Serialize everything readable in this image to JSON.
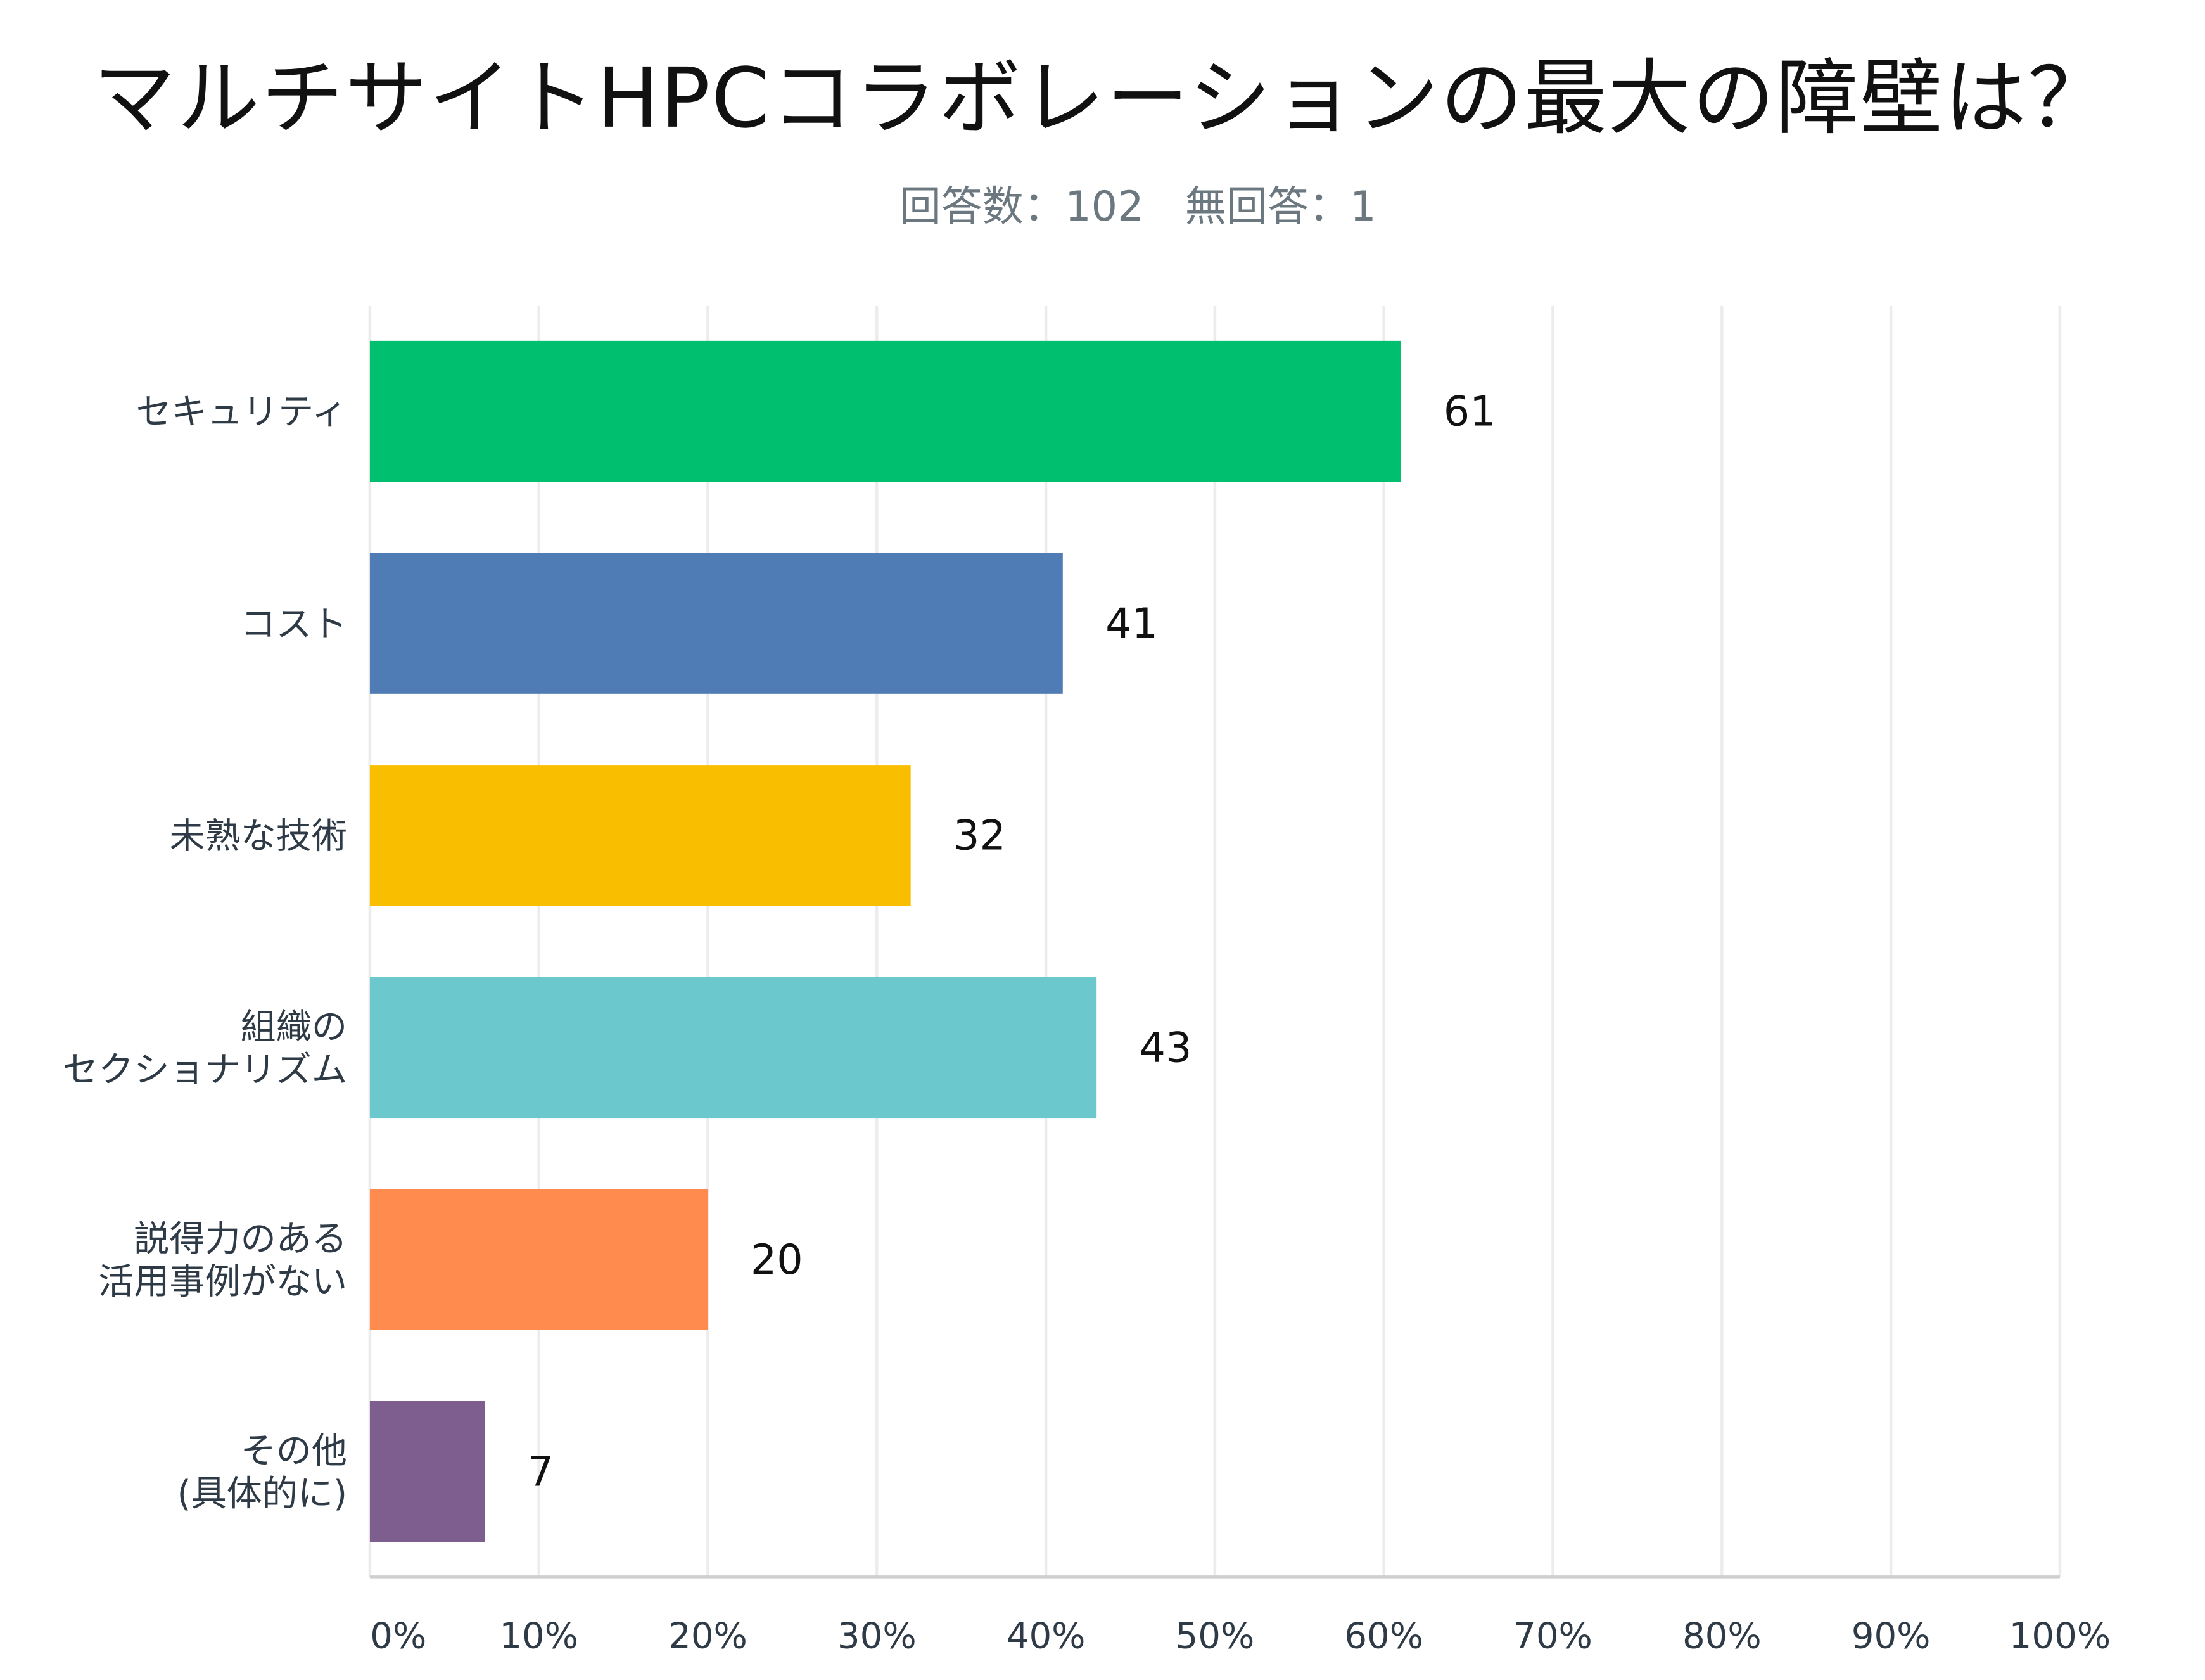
{
  "chart_data": {
    "type": "bar",
    "orientation": "horizontal",
    "title": "マルチサイトHPCコラボレーションの最大の障壁は？",
    "subtitle": "回答数：102　無回答：1",
    "categories": [
      [
        "セキュリティ"
      ],
      [
        "コスト"
      ],
      [
        "未熟な技術"
      ],
      [
        "組織の",
        "セクショナリズム"
      ],
      [
        "説得力のある",
        "活用事例がない"
      ],
      [
        "その他",
        "(具体的に)"
      ]
    ],
    "values": [
      61,
      41,
      32,
      43,
      20,
      7
    ],
    "percent": [
      61,
      41,
      32,
      43,
      20,
      6.8
    ],
    "colors": [
      "#00bf6f",
      "#507cb6",
      "#f9be00",
      "#6bc8cd",
      "#ff8b4f",
      "#7d5e8f"
    ],
    "xlim": [
      0,
      100
    ],
    "xticks": [
      "0%",
      "10%",
      "20%",
      "30%",
      "40%",
      "50%",
      "60%",
      "70%",
      "80%",
      "90%",
      "100%"
    ],
    "grid": true
  }
}
